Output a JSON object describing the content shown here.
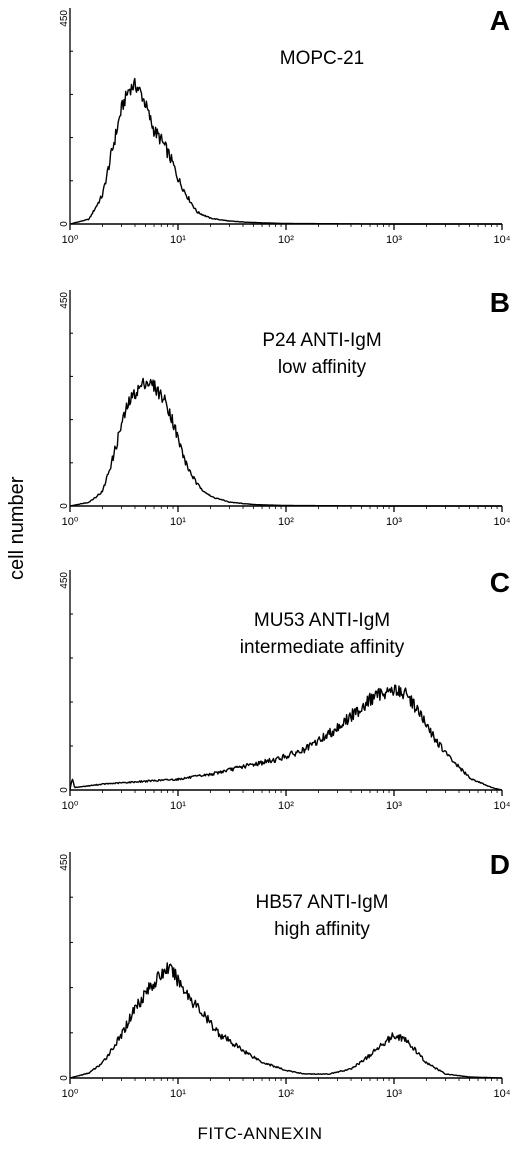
{
  "figure": {
    "ylabel": "cell number",
    "xlabel": "FITC-ANNEXIN"
  },
  "chart_data": [
    {
      "type": "area",
      "panel_letter": "A",
      "label_lines": [
        "MOPC-21"
      ],
      "xscale": "log",
      "xlim": [
        1,
        10000
      ],
      "ylim": [
        0,
        450
      ],
      "xticks": [
        "10⁰",
        "10¹",
        "10²",
        "10³",
        "10⁴"
      ],
      "ytick_top": "450",
      "ytick_bottom": "0",
      "x": [
        1.0,
        1.5,
        2.0,
        2.5,
        3.0,
        3.5,
        4.0,
        4.5,
        5.0,
        5.5,
        6.0,
        7.0,
        8.0,
        9.0,
        10,
        12,
        15,
        20,
        30,
        50,
        100,
        1000,
        10000
      ],
      "y": [
        0,
        10,
        60,
        160,
        240,
        280,
        290,
        275,
        250,
        220,
        195,
        175,
        150,
        125,
        95,
        60,
        25,
        12,
        6,
        3,
        1,
        0,
        0
      ]
    },
    {
      "type": "area",
      "panel_letter": "B",
      "label_lines": [
        "P24 ANTI-IgM",
        "low affinity"
      ],
      "xscale": "log",
      "xlim": [
        1,
        10000
      ],
      "ylim": [
        0,
        450
      ],
      "xticks": [
        "10⁰",
        "10¹",
        "10²",
        "10³",
        "10⁴"
      ],
      "ytick_top": "450",
      "ytick_bottom": "0",
      "x": [
        1.0,
        1.5,
        2.0,
        2.5,
        3.0,
        3.5,
        4.0,
        5.0,
        6.0,
        7.0,
        8.0,
        9.0,
        10,
        12,
        15,
        20,
        30,
        50,
        100,
        1000,
        10000
      ],
      "y": [
        0,
        8,
        30,
        100,
        170,
        215,
        235,
        260,
        250,
        230,
        210,
        175,
        140,
        85,
        45,
        20,
        8,
        3,
        1,
        0,
        0
      ]
    },
    {
      "type": "area",
      "panel_letter": "C",
      "label_lines": [
        "MU53 ANTI-IgM",
        "intermediate affinity"
      ],
      "xscale": "log",
      "xlim": [
        1,
        10000
      ],
      "ylim": [
        0,
        450
      ],
      "xticks": [
        "10⁰",
        "10¹",
        "10²",
        "10³",
        "10⁴"
      ],
      "ytick_top": "450",
      "ytick_bottom": "0",
      "x": [
        1.0,
        1.05,
        1.1,
        2.0,
        5.0,
        10,
        20,
        40,
        80,
        150,
        250,
        400,
        600,
        800,
        1000,
        1300,
        1600,
        2000,
        3000,
        5000,
        8000,
        10000
      ],
      "y": [
        0,
        25,
        5,
        12,
        18,
        22,
        32,
        48,
        62,
        82,
        115,
        150,
        185,
        200,
        205,
        195,
        170,
        130,
        75,
        25,
        5,
        0
      ]
    },
    {
      "type": "area",
      "panel_letter": "D",
      "label_lines": [
        "HB57 ANTI-IgM",
        "high affinity"
      ],
      "xscale": "log",
      "xlim": [
        1,
        10000
      ],
      "ylim": [
        0,
        450
      ],
      "xticks": [
        "10⁰",
        "10¹",
        "10²",
        "10³",
        "10⁴"
      ],
      "ytick_top": "450",
      "ytick_bottom": "0",
      "x": [
        1.0,
        1.5,
        2.0,
        3.0,
        4.0,
        5.0,
        6.0,
        7.0,
        8.0,
        9.0,
        10,
        13,
        18,
        25,
        40,
        60,
        100,
        150,
        250,
        400,
        600,
        800,
        1000,
        1200,
        1500,
        2000,
        3000,
        5000,
        10000
      ],
      "y": [
        0,
        10,
        30,
        85,
        140,
        170,
        190,
        205,
        220,
        210,
        195,
        160,
        120,
        85,
        55,
        32,
        15,
        8,
        8,
        18,
        45,
        70,
        85,
        80,
        60,
        30,
        8,
        2,
        0
      ]
    }
  ]
}
